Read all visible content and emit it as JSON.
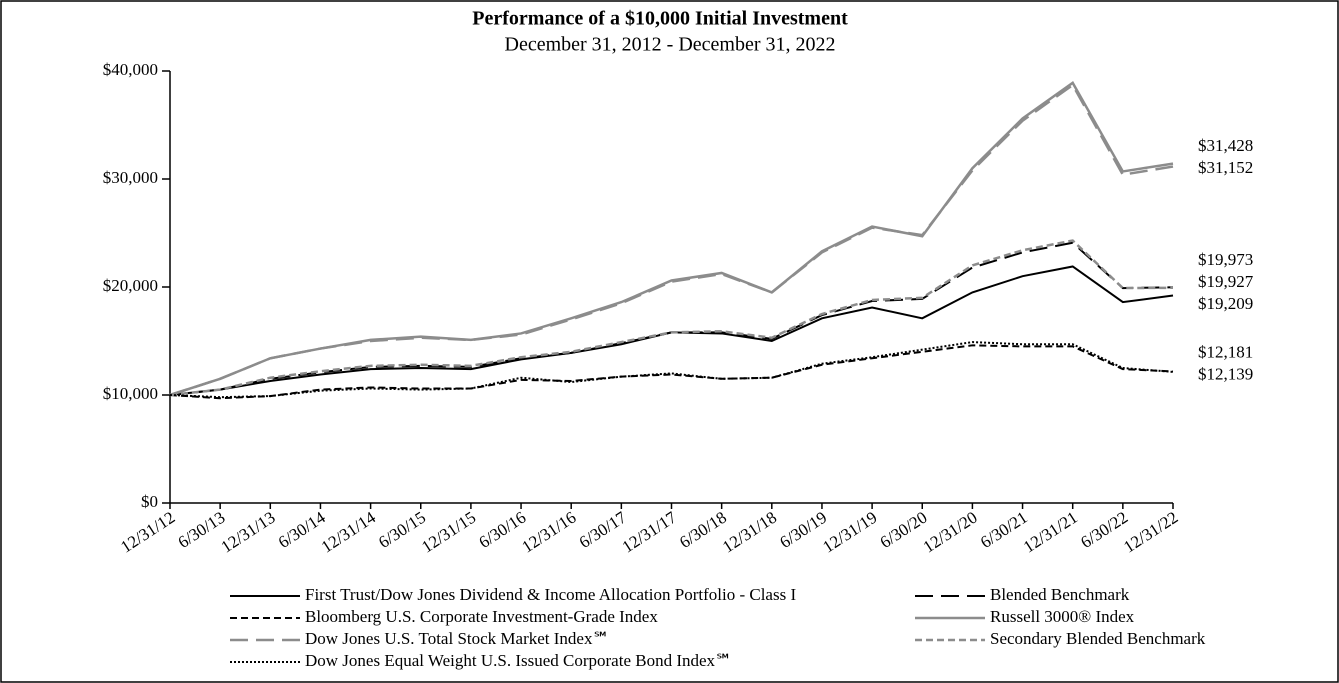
{
  "chart_data": {
    "type": "line",
    "title": "Performance of a $10,000 Initial Investment",
    "subtitle": "December 31, 2012 - December 31, 2022",
    "categories": [
      "12/31/12",
      "6/30/13",
      "12/31/13",
      "6/30/14",
      "12/31/14",
      "6/30/15",
      "12/31/15",
      "6/30/16",
      "12/31/16",
      "6/30/17",
      "12/31/17",
      "6/30/18",
      "12/31/18",
      "6/30/19",
      "12/31/19",
      "6/30/20",
      "12/31/20",
      "6/30/21",
      "12/31/21",
      "6/30/22",
      "12/31/22"
    ],
    "ylim": [
      0,
      40000
    ],
    "yticks": [
      {
        "value": 0,
        "label": "$0"
      },
      {
        "value": 10000,
        "label": "$10,000"
      },
      {
        "value": 20000,
        "label": "$20,000"
      },
      {
        "value": 30000,
        "label": "$30,000"
      },
      {
        "value": 40000,
        "label": "$40,000"
      }
    ],
    "series": [
      {
        "name": "First Trust/Dow Jones Dividend & Income Allocation Portfolio - Class I",
        "color": "#000000",
        "dash": "solid",
        "values": [
          10000,
          10500,
          11300,
          11900,
          12400,
          12500,
          12400,
          13300,
          13900,
          14700,
          15800,
          15700,
          15000,
          17100,
          18100,
          17100,
          19500,
          21000,
          21900,
          18600,
          19209
        ],
        "value_labels": [
          null,
          null,
          null,
          null,
          null,
          null,
          null,
          null,
          null,
          null,
          null,
          null,
          null,
          null,
          null,
          null,
          null,
          null,
          null,
          null,
          "$19,209"
        ]
      },
      {
        "name": "Blended Benchmark",
        "color": "#000000",
        "dash": "long-dash",
        "values": [
          10000,
          10500,
          11500,
          12100,
          12600,
          12700,
          12600,
          13400,
          13900,
          14800,
          15800,
          15800,
          15200,
          17400,
          18700,
          18900,
          21800,
          23200,
          24100,
          19900,
          19973
        ],
        "value_labels": [
          null,
          null,
          null,
          null,
          null,
          null,
          null,
          null,
          null,
          null,
          null,
          null,
          null,
          null,
          null,
          null,
          null,
          null,
          null,
          null,
          "$19,973"
        ]
      },
      {
        "name": "Bloomberg U.S. Corporate Investment-Grade Index",
        "color": "#000000",
        "dash": "dash",
        "values": [
          10000,
          9700,
          9900,
          10500,
          10700,
          10600,
          10600,
          11400,
          11300,
          11700,
          11900,
          11500,
          11600,
          12800,
          13400,
          14000,
          14600,
          14500,
          14500,
          12400,
          12181
        ],
        "value_labels": [
          null,
          null,
          null,
          null,
          null,
          null,
          null,
          null,
          null,
          null,
          null,
          null,
          null,
          null,
          null,
          null,
          null,
          null,
          null,
          null,
          "$12,181"
        ]
      },
      {
        "name": "Russell 3000® Index",
        "color": "#8c8c8c",
        "dash": "solid",
        "values": [
          10000,
          11500,
          13400,
          14300,
          15100,
          15400,
          15100,
          15700,
          17100,
          18600,
          20600,
          21300,
          19500,
          23300,
          25600,
          24700,
          31000,
          35600,
          38900,
          30700,
          31428
        ],
        "value_labels": [
          null,
          null,
          null,
          null,
          null,
          null,
          null,
          null,
          null,
          null,
          null,
          null,
          null,
          null,
          null,
          null,
          null,
          null,
          null,
          null,
          "$31,428"
        ]
      },
      {
        "name": "Dow Jones U.S. Total Stock Market Index℠",
        "color": "#8c8c8c",
        "dash": "long-dash",
        "values": [
          10000,
          11500,
          13400,
          14300,
          15000,
          15300,
          15100,
          15600,
          17000,
          18500,
          20500,
          21200,
          19500,
          23200,
          25500,
          24800,
          30800,
          35400,
          38700,
          30400,
          31152
        ],
        "value_labels": [
          null,
          null,
          null,
          null,
          null,
          null,
          null,
          null,
          null,
          null,
          null,
          null,
          null,
          null,
          null,
          null,
          null,
          null,
          null,
          null,
          "$31,152"
        ]
      },
      {
        "name": "Secondary Blended Benchmark",
        "color": "#8c8c8c",
        "dash": "dash",
        "values": [
          10000,
          10500,
          11600,
          12200,
          12700,
          12800,
          12700,
          13500,
          14000,
          14900,
          15800,
          15900,
          15300,
          17500,
          18800,
          19000,
          22000,
          23400,
          24300,
          19900,
          19927
        ],
        "value_labels": [
          null,
          null,
          null,
          null,
          null,
          null,
          null,
          null,
          null,
          null,
          null,
          null,
          null,
          null,
          null,
          null,
          null,
          null,
          null,
          null,
          "$19,927"
        ]
      },
      {
        "name": "Dow Jones Equal Weight U.S. Issued Corporate Bond Index℠",
        "color": "#000000",
        "dash": "dot",
        "values": [
          10000,
          9800,
          9900,
          10400,
          10600,
          10500,
          10600,
          11600,
          11200,
          11700,
          12000,
          11500,
          11600,
          12900,
          13500,
          14200,
          14900,
          14700,
          14700,
          12500,
          12139
        ],
        "value_labels": [
          null,
          null,
          null,
          null,
          null,
          null,
          null,
          null,
          null,
          null,
          null,
          null,
          null,
          null,
          null,
          null,
          null,
          null,
          null,
          null,
          "$12,139"
        ]
      }
    ]
  }
}
